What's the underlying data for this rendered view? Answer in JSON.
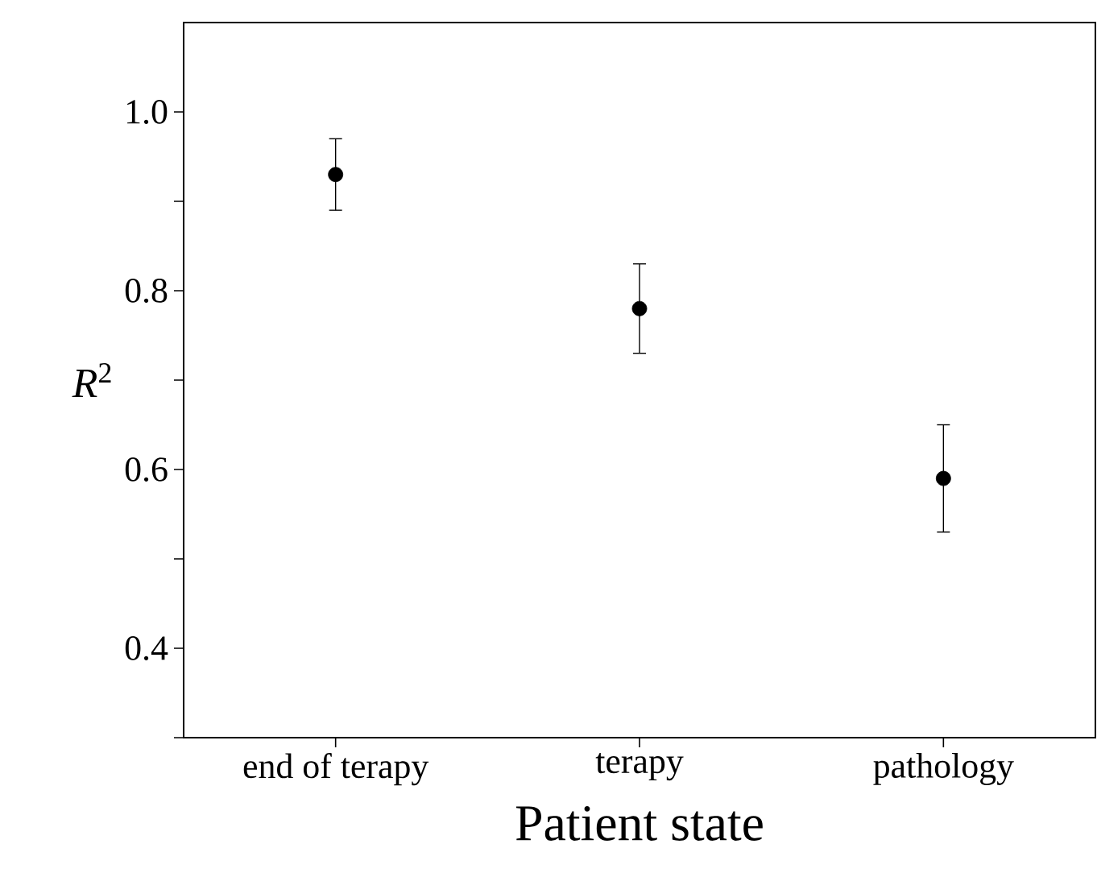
{
  "chart_data": {
    "type": "scatter",
    "xlabel": "Patient state",
    "ylabel": "*R*$^{2}$",
    "categories": [
      "end of terapy",
      "terapy",
      "pathology"
    ],
    "series": [
      {
        "color": "#000000",
        "values": [
          0.93,
          0.78,
          0.59
        ],
        "errors": [
          [
            0.89,
            0.97
          ],
          [
            0.73,
            0.83
          ],
          [
            0.53,
            0.65
          ]
        ]
      }
    ],
    "ylim": [
      0.3,
      1.1
    ],
    "yticks": [
      {
        "value": 0.3,
        "label": null
      },
      0.4,
      {
        "value": 0.5,
        "label": null
      },
      0.6,
      {
        "value": 0.7,
        "label": null
      },
      0.8,
      {
        "value": 0.9,
        "label": null
      },
      {
        "value": 1.0,
        "label": "1.0"
      }
    ],
    "marker": "circle"
  }
}
